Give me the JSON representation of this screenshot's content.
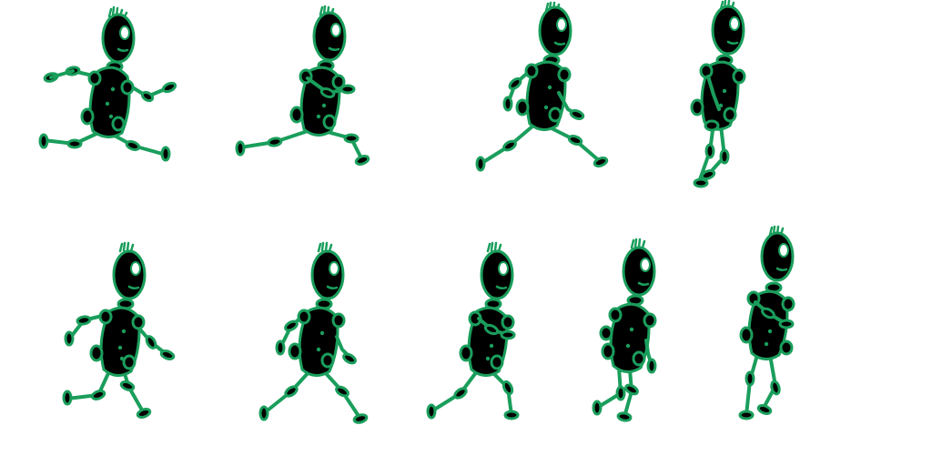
{
  "sprite_sheet": {
    "background": "#ffffff",
    "colors": {
      "outline": "#1a9e5c",
      "body": "#000000",
      "eye": "#ffffff"
    },
    "rows": 2,
    "frame_count": 9,
    "frames": [
      {
        "name": "walk-frame-1",
        "pose": "wide-stride-arms-out"
      },
      {
        "name": "walk-frame-2",
        "pose": "stride-arm-forward"
      },
      {
        "name": "walk-frame-3",
        "pose": "stride-lean"
      },
      {
        "name": "walk-frame-4",
        "pose": "legs-crossed-upright"
      },
      {
        "name": "walk-frame-5",
        "pose": "stride-arms-out"
      },
      {
        "name": "walk-frame-6",
        "pose": "stride-arm-down"
      },
      {
        "name": "walk-frame-7",
        "pose": "stride-arm-folded"
      },
      {
        "name": "walk-frame-8",
        "pose": "short-step"
      },
      {
        "name": "walk-frame-9",
        "pose": "passing-step"
      }
    ]
  }
}
